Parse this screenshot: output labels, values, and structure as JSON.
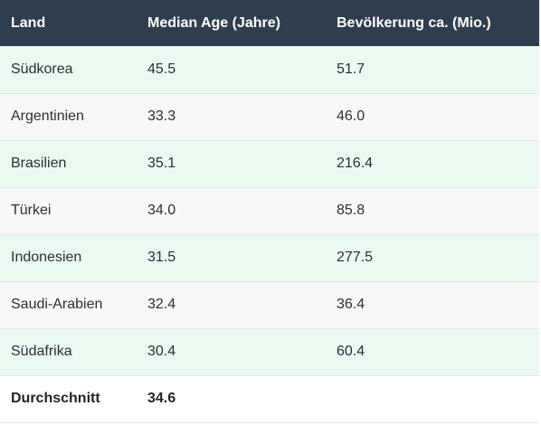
{
  "table": {
    "headers": [
      "Land",
      "Median Age (Jahre)",
      "Bevölkerung ca. (Mio.)"
    ],
    "rows": [
      [
        "Südkorea",
        "45.5",
        "51.7"
      ],
      [
        "Argentinien",
        "33.3",
        "46.0"
      ],
      [
        "Brasilien",
        "35.1",
        "216.4"
      ],
      [
        "Türkei",
        "34.0",
        "85.8"
      ],
      [
        "Indonesien",
        "31.5",
        "277.5"
      ],
      [
        "Saudi-Arabien",
        "32.4",
        "36.4"
      ],
      [
        "Südafrika",
        "30.4",
        "60.4"
      ]
    ],
    "total": [
      "Durchschnitt",
      "34.6",
      ""
    ]
  },
  "colors": {
    "header_bg": "#2f3e4e",
    "row_green": "#eafaf0",
    "row_plain": "#f7f8fa"
  }
}
